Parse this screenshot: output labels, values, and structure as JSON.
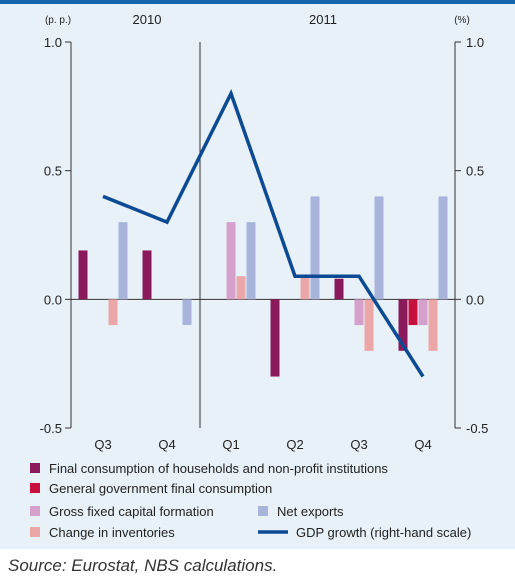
{
  "chart_data": {
    "type": "bar",
    "left_unit": "(p. p.)",
    "right_unit": "(%)",
    "years": [
      "2010",
      "2011"
    ],
    "categories": [
      "Q3",
      "Q4",
      "Q1",
      "Q2",
      "Q3",
      "Q4"
    ],
    "ylim": [
      -0.5,
      1.0
    ],
    "yticks": [
      "1.0",
      "0.5",
      "0.0",
      "-0.5"
    ],
    "series": [
      {
        "name": "Final consumption of households and non-profit institutions",
        "color": "#8b1a5c",
        "values": [
          0.19,
          0.19,
          null,
          -0.3,
          0.08,
          -0.2
        ]
      },
      {
        "name": "General government final consumption",
        "color": "#c8103e",
        "values": [
          null,
          null,
          null,
          null,
          null,
          -0.1
        ]
      },
      {
        "name": "Gross fixed capital formation",
        "color": "#d6a0cc",
        "values": [
          null,
          null,
          0.3,
          null,
          -0.1,
          -0.1
        ]
      },
      {
        "name": "Change in inventories",
        "color": "#eba6a8",
        "values": [
          -0.1,
          null,
          0.09,
          0.09,
          -0.2,
          -0.2
        ]
      },
      {
        "name": "Net exports",
        "color": "#a9b4db",
        "values": [
          0.3,
          -0.1,
          0.3,
          0.4,
          0.4,
          0.4
        ]
      }
    ],
    "line": {
      "name": "GDP growth (right-hand scale)",
      "color": "#0d4a94",
      "values": [
        0.4,
        0.3,
        0.8,
        0.09,
        0.09,
        -0.3
      ]
    }
  },
  "source": "Source: Eurostat, NBS calculations."
}
